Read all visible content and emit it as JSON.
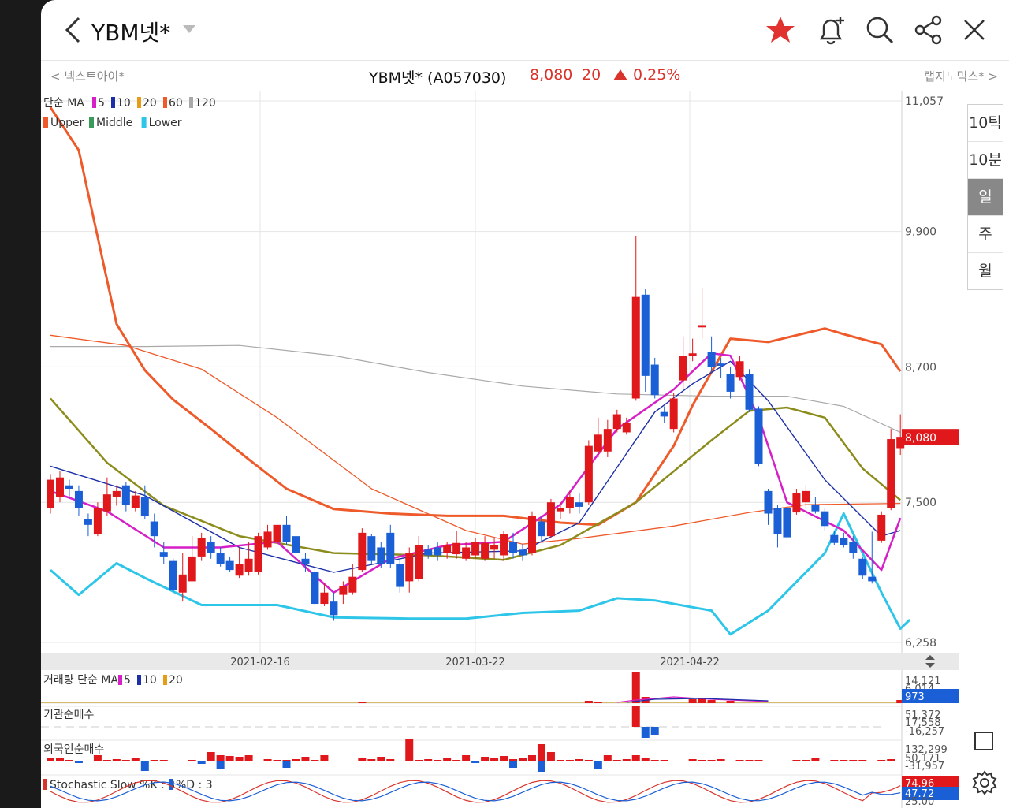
{
  "header": {
    "title": "YBM넷*",
    "icons": [
      "back-icon",
      "chevron-down-icon",
      "star-icon",
      "bell-plus-icon",
      "search-icon",
      "share-icon",
      "close-icon"
    ],
    "star_color": "#e0322f"
  },
  "subheader": {
    "prev_label": "< 넥스트아이*",
    "next_label": "랩지노믹스* >",
    "stock_name": "YBM넷* (A057030)",
    "price": "8,080",
    "change": "20",
    "change_pct": "0.25%",
    "up_color": "#d9342b"
  },
  "legend": {
    "ma_prefix": "단순 MA",
    "ma_items": [
      {
        "label": "5",
        "color": "#d61fc7"
      },
      {
        "label": "10",
        "color": "#1c2fa8"
      },
      {
        "label": "20",
        "color": "#e89b14"
      },
      {
        "label": "60",
        "color": "#ee5a2a"
      },
      {
        "label": "120",
        "color": "#a9a9a9"
      }
    ],
    "bb_items": [
      {
        "label": "Upper",
        "color": "#ee5a2a"
      },
      {
        "label": "Middle",
        "color": "#3a9a5c"
      },
      {
        "label": "Lower",
        "color": "#2ec6e8"
      }
    ]
  },
  "chart_data": {
    "type": "candlestick",
    "y_ticks": [
      "11,057",
      "9,900",
      "8,700",
      "7,500",
      "6,258"
    ],
    "y_tick_values": [
      11057,
      9900,
      8700,
      7500,
      6258
    ],
    "ylim": [
      6258,
      11057
    ],
    "x_ticks": [
      "2021-02-16",
      "2021-03-22",
      "2021-04-22"
    ],
    "current_price_label": "8,080",
    "candles": [
      {
        "o": 7450,
        "c": 7700,
        "h": 7750,
        "l": 7400
      },
      {
        "o": 7550,
        "c": 7720,
        "h": 7780,
        "l": 7500
      },
      {
        "o": 7650,
        "c": 7620,
        "h": 7700,
        "l": 7550
      },
      {
        "o": 7600,
        "c": 7450,
        "h": 7650,
        "l": 7380
      },
      {
        "o": 7350,
        "c": 7300,
        "h": 7400,
        "l": 7200
      },
      {
        "o": 7220,
        "c": 7450,
        "h": 7500,
        "l": 7200
      },
      {
        "o": 7420,
        "c": 7570,
        "h": 7720,
        "l": 7380
      },
      {
        "o": 7550,
        "c": 7600,
        "h": 7650,
        "l": 7470
      },
      {
        "o": 7650,
        "c": 7480,
        "h": 7680,
        "l": 7420
      },
      {
        "o": 7450,
        "c": 7560,
        "h": 7600,
        "l": 7420
      },
      {
        "o": 7550,
        "c": 7380,
        "h": 7650,
        "l": 7350
      },
      {
        "o": 7330,
        "c": 7200,
        "h": 7400,
        "l": 7100
      },
      {
        "o": 7060,
        "c": 7020,
        "h": 7150,
        "l": 6950
      },
      {
        "o": 6980,
        "c": 6720,
        "h": 7000,
        "l": 6700
      },
      {
        "o": 6700,
        "c": 6860,
        "h": 7050,
        "l": 6620
      },
      {
        "o": 6800,
        "c": 7020,
        "h": 7200,
        "l": 6800
      },
      {
        "o": 7020,
        "c": 7180,
        "h": 7230,
        "l": 6980
      },
      {
        "o": 7150,
        "c": 7050,
        "h": 7200,
        "l": 7000
      },
      {
        "o": 7050,
        "c": 6950,
        "h": 7100,
        "l": 6930
      },
      {
        "o": 6980,
        "c": 6900,
        "h": 7020,
        "l": 6880
      },
      {
        "o": 6850,
        "c": 6950,
        "h": 7100,
        "l": 6830
      },
      {
        "o": 6880,
        "c": 7000,
        "h": 7150,
        "l": 6850
      },
      {
        "o": 6880,
        "c": 7200,
        "h": 7230,
        "l": 6860
      },
      {
        "o": 7100,
        "c": 7240,
        "h": 7300,
        "l": 7080
      },
      {
        "o": 7150,
        "c": 7300,
        "h": 7350,
        "l": 7120
      },
      {
        "o": 7300,
        "c": 7150,
        "h": 7380,
        "l": 7120
      },
      {
        "o": 7200,
        "c": 7050,
        "h": 7250,
        "l": 7000
      },
      {
        "o": 7000,
        "c": 6950,
        "h": 7050,
        "l": 6880
      },
      {
        "o": 6880,
        "c": 6600,
        "h": 6920,
        "l": 6580
      },
      {
        "o": 6600,
        "c": 6700,
        "h": 6780,
        "l": 6580
      },
      {
        "o": 6620,
        "c": 6500,
        "h": 6700,
        "l": 6450
      },
      {
        "o": 6680,
        "c": 6760,
        "h": 6800,
        "l": 6600
      },
      {
        "o": 6700,
        "c": 6840,
        "h": 6950,
        "l": 6680
      },
      {
        "o": 6900,
        "c": 7230,
        "h": 7270,
        "l": 6880
      },
      {
        "o": 7200,
        "c": 6980,
        "h": 7220,
        "l": 6950
      },
      {
        "o": 7100,
        "c": 6950,
        "h": 7150,
        "l": 6920
      },
      {
        "o": 7230,
        "c": 6950,
        "h": 7300,
        "l": 6920
      },
      {
        "o": 6950,
        "c": 6750,
        "h": 7000,
        "l": 6700
      },
      {
        "o": 6800,
        "c": 7050,
        "h": 7100,
        "l": 6700
      },
      {
        "o": 6820,
        "c": 7120,
        "h": 7200,
        "l": 6800
      },
      {
        "o": 7080,
        "c": 7030,
        "h": 7120,
        "l": 7000
      },
      {
        "o": 7100,
        "c": 7030,
        "h": 7150,
        "l": 6980
      },
      {
        "o": 7050,
        "c": 7120,
        "h": 7150,
        "l": 7000
      },
      {
        "o": 7040,
        "c": 7140,
        "h": 7250,
        "l": 7000
      },
      {
        "o": 7000,
        "c": 7100,
        "h": 7150,
        "l": 6980
      },
      {
        "o": 7030,
        "c": 7150,
        "h": 7180,
        "l": 7000
      },
      {
        "o": 7000,
        "c": 7140,
        "h": 7200,
        "l": 6980
      },
      {
        "o": 7080,
        "c": 7120,
        "h": 7180,
        "l": 7000
      },
      {
        "o": 7030,
        "c": 7220,
        "h": 7250,
        "l": 6980
      },
      {
        "o": 7150,
        "c": 7050,
        "h": 7230,
        "l": 7000
      },
      {
        "o": 7080,
        "c": 7030,
        "h": 7130,
        "l": 6980
      },
      {
        "o": 7050,
        "c": 7380,
        "h": 7420,
        "l": 7030
      },
      {
        "o": 7330,
        "c": 7200,
        "h": 7370,
        "l": 7150
      },
      {
        "o": 7200,
        "c": 7500,
        "h": 7530,
        "l": 7180
      },
      {
        "o": 7420,
        "c": 7450,
        "h": 7500,
        "l": 7350
      },
      {
        "o": 7450,
        "c": 7550,
        "h": 7600,
        "l": 7400
      },
      {
        "o": 7500,
        "c": 7460,
        "h": 7580,
        "l": 7400
      },
      {
        "o": 7500,
        "c": 8000,
        "h": 8050,
        "l": 7480
      },
      {
        "o": 7950,
        "c": 8100,
        "h": 8250,
        "l": 7900
      },
      {
        "o": 7950,
        "c": 8150,
        "h": 8230,
        "l": 7900
      },
      {
        "o": 8150,
        "c": 8280,
        "h": 8320,
        "l": 8120
      },
      {
        "o": 8120,
        "c": 8200,
        "h": 8250,
        "l": 8100
      },
      {
        "o": 8420,
        "c": 9320,
        "h": 9860,
        "l": 8400
      },
      {
        "o": 9340,
        "c": 8620,
        "h": 9390,
        "l": 8480
      },
      {
        "o": 8720,
        "c": 8450,
        "h": 8780,
        "l": 8420
      },
      {
        "o": 8300,
        "c": 8260,
        "h": 8350,
        "l": 8200
      },
      {
        "o": 8150,
        "c": 8420,
        "h": 8470,
        "l": 8120
      },
      {
        "o": 8580,
        "c": 8800,
        "h": 8970,
        "l": 8500
      },
      {
        "o": 8800,
        "c": 8820,
        "h": 8950,
        "l": 8750
      },
      {
        "o": 9050,
        "c": 9070,
        "h": 9400,
        "l": 8950
      },
      {
        "o": 8830,
        "c": 8700,
        "h": 8970,
        "l": 8650
      },
      {
        "o": 8730,
        "c": 8710,
        "h": 8780,
        "l": 8600
      },
      {
        "o": 8640,
        "c": 8480,
        "h": 8700,
        "l": 8420
      },
      {
        "o": 8610,
        "c": 8750,
        "h": 8800,
        "l": 8580
      },
      {
        "o": 8640,
        "c": 8320,
        "h": 8680,
        "l": 8300
      },
      {
        "o": 8330,
        "c": 7840,
        "h": 8350,
        "l": 7820
      },
      {
        "o": 7600,
        "c": 7400,
        "h": 7620,
        "l": 7300
      },
      {
        "o": 7450,
        "c": 7220,
        "h": 7480,
        "l": 7100
      },
      {
        "o": 7450,
        "c": 7190,
        "h": 7480,
        "l": 7170
      },
      {
        "o": 7410,
        "c": 7580,
        "h": 7620,
        "l": 7390
      },
      {
        "o": 7500,
        "c": 7600,
        "h": 7650,
        "l": 7450
      },
      {
        "o": 7480,
        "c": 7420,
        "h": 7550,
        "l": 7400
      },
      {
        "o": 7420,
        "c": 7290,
        "h": 7450,
        "l": 7250
      },
      {
        "o": 7210,
        "c": 7140,
        "h": 7250,
        "l": 7120
      },
      {
        "o": 7180,
        "c": 7120,
        "h": 7230,
        "l": 7100
      },
      {
        "o": 7150,
        "c": 7050,
        "h": 7200,
        "l": 7000
      },
      {
        "o": 7000,
        "c": 6850,
        "h": 7020,
        "l": 6820
      },
      {
        "o": 6840,
        "c": 6800,
        "h": 7240,
        "l": 6780
      },
      {
        "o": 7160,
        "c": 7390,
        "h": 7420,
        "l": 7140
      },
      {
        "o": 7450,
        "c": 8060,
        "h": 8150,
        "l": 7430
      },
      {
        "o": 7980,
        "c": 8080,
        "h": 8280,
        "l": 7920
      }
    ],
    "ma_series": [
      {
        "name": "5",
        "color": "#d61fc7",
        "points": [
          [
            0,
            7600
          ],
          [
            6,
            7420
          ],
          [
            12,
            7100
          ],
          [
            18,
            7100
          ],
          [
            24,
            7150
          ],
          [
            30,
            6700
          ],
          [
            36,
            7000
          ],
          [
            42,
            7120
          ],
          [
            48,
            7150
          ],
          [
            54,
            7480
          ],
          [
            60,
            8150
          ],
          [
            66,
            8500
          ],
          [
            70,
            8820
          ],
          [
            72,
            8800
          ],
          [
            75,
            8250
          ],
          [
            78,
            7500
          ],
          [
            84,
            7250
          ],
          [
            88,
            6900
          ],
          [
            90,
            7360
          ]
        ]
      },
      {
        "name": "10",
        "color": "#1c2fa8",
        "points": [
          [
            0,
            7820
          ],
          [
            10,
            7560
          ],
          [
            20,
            7100
          ],
          [
            30,
            6880
          ],
          [
            40,
            7050
          ],
          [
            50,
            7070
          ],
          [
            56,
            7320
          ],
          [
            64,
            8300
          ],
          [
            68,
            8550
          ],
          [
            72,
            8750
          ],
          [
            76,
            8400
          ],
          [
            82,
            7700
          ],
          [
            88,
            7200
          ],
          [
            90,
            7250
          ]
        ]
      },
      {
        "name": "20",
        "color": "#8c8c1c",
        "points": [
          [
            0,
            8420
          ],
          [
            6,
            7850
          ],
          [
            12,
            7470
          ],
          [
            20,
            7200
          ],
          [
            30,
            7050
          ],
          [
            40,
            7030
          ],
          [
            48,
            6990
          ],
          [
            54,
            7120
          ],
          [
            62,
            7500
          ],
          [
            70,
            8050
          ],
          [
            74,
            8310
          ],
          [
            78,
            8340
          ],
          [
            82,
            8250
          ],
          [
            86,
            7800
          ],
          [
            90,
            7520
          ]
        ]
      },
      {
        "name": "60",
        "color": "#ee5a2a",
        "points": [
          [
            0,
            8980
          ],
          [
            8,
            8890
          ],
          [
            16,
            8680
          ],
          [
            24,
            8250
          ],
          [
            34,
            7620
          ],
          [
            44,
            7250
          ],
          [
            50,
            7130
          ],
          [
            56,
            7180
          ],
          [
            66,
            7290
          ],
          [
            74,
            7410
          ],
          [
            80,
            7480
          ],
          [
            90,
            7490
          ]
        ]
      },
      {
        "name": "120",
        "color": "#a9a9a9",
        "points": [
          [
            0,
            8880
          ],
          [
            10,
            8880
          ],
          [
            20,
            8890
          ],
          [
            30,
            8800
          ],
          [
            40,
            8650
          ],
          [
            50,
            8530
          ],
          [
            60,
            8460
          ],
          [
            70,
            8440
          ],
          [
            78,
            8440
          ],
          [
            84,
            8350
          ],
          [
            90,
            8120
          ]
        ]
      }
    ],
    "bb_series": [
      {
        "name": "Upper",
        "color": "#ee5a2a",
        "points": [
          [
            0,
            11000
          ],
          [
            3,
            10620
          ],
          [
            7,
            9080
          ],
          [
            10,
            8670
          ],
          [
            13,
            8410
          ],
          [
            17,
            8150
          ],
          [
            21,
            7880
          ],
          [
            25,
            7620
          ],
          [
            30,
            7440
          ],
          [
            36,
            7400
          ],
          [
            42,
            7380
          ],
          [
            48,
            7380
          ],
          [
            54,
            7320
          ],
          [
            58,
            7300
          ],
          [
            62,
            7500
          ],
          [
            66,
            8000
          ],
          [
            68,
            8360
          ],
          [
            72,
            8950
          ],
          [
            76,
            8920
          ],
          [
            82,
            9040
          ],
          [
            84,
            8990
          ],
          [
            88,
            8900
          ],
          [
            90,
            8660
          ]
        ]
      },
      {
        "name": "Middle",
        "color": "#8c8c1c",
        "points": []
      },
      {
        "name": "Lower",
        "color": "#2ec6e8",
        "points": [
          [
            0,
            6900
          ],
          [
            3,
            6680
          ],
          [
            7,
            6960
          ],
          [
            10,
            6830
          ],
          [
            16,
            6590
          ],
          [
            24,
            6590
          ],
          [
            30,
            6480
          ],
          [
            38,
            6470
          ],
          [
            44,
            6470
          ],
          [
            50,
            6520
          ],
          [
            56,
            6540
          ],
          [
            60,
            6650
          ],
          [
            64,
            6630
          ],
          [
            70,
            6540
          ],
          [
            72,
            6330
          ],
          [
            76,
            6540
          ],
          [
            82,
            7050
          ],
          [
            84,
            7400
          ],
          [
            88,
            6700
          ],
          [
            90,
            6380
          ],
          [
            91,
            6460
          ]
        ]
      }
    ]
  },
  "volume_panel": {
    "label": "거래량 단순 MA",
    "ma_items": [
      {
        "label": "5",
        "color": "#d61fc7"
      },
      {
        "label": "10",
        "color": "#1c2fa8"
      },
      {
        "label": "20",
        "color": "#e89b14"
      }
    ],
    "ticks": [
      "14,121",
      "6,014"
    ],
    "current": "973"
  },
  "inst_panel": {
    "label": "기관순매수",
    "ticks": [
      "51,372",
      "17,558",
      "-16,257"
    ]
  },
  "foreign_panel": {
    "label": "외국인순매수",
    "ticks": [
      "132,299",
      "50,171",
      "-31,957"
    ]
  },
  "stoch_panel": {
    "label_k": "Stochastic Slow %K : 3",
    "label_d": "%D : 3",
    "ticks": [
      "74.96",
      "47.72",
      "25.00"
    ],
    "k_color": "#d9342b",
    "d_color": "#1a5fd6"
  },
  "periods": [
    "10틱",
    "10분",
    "일",
    "주",
    "월"
  ],
  "selected_period": "일"
}
